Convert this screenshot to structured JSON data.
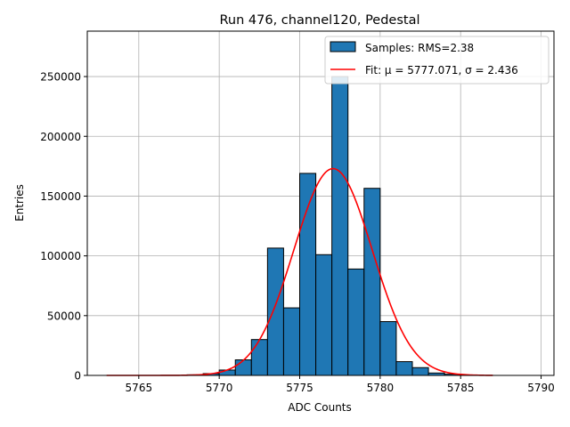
{
  "chart_data": {
    "type": "bar",
    "title": "Run 476, channel120, Pedestal",
    "xlabel": "ADC Counts",
    "ylabel": "Entries",
    "xlim": [
      5761.8,
      5790.8
    ],
    "ylim": [
      0,
      288000
    ],
    "xticks": [
      5765,
      5770,
      5775,
      5780,
      5785,
      5790
    ],
    "xtick_labels": [
      "5765",
      "5770",
      "5775",
      "5780",
      "5785",
      "5790"
    ],
    "yticks": [
      0,
      50000,
      100000,
      150000,
      200000,
      250000
    ],
    "ytick_labels": [
      "0",
      "50000",
      "100000",
      "150000",
      "200000",
      "250000"
    ],
    "grid": true,
    "legend_position": "top-right",
    "bin_width": 1,
    "bins": [
      {
        "left": 5768,
        "value": 500
      },
      {
        "left": 5769,
        "value": 1500
      },
      {
        "left": 5770,
        "value": 4500
      },
      {
        "left": 5771,
        "value": 13000
      },
      {
        "left": 5772,
        "value": 30000
      },
      {
        "left": 5773,
        "value": 106500
      },
      {
        "left": 5774,
        "value": 56500
      },
      {
        "left": 5775,
        "value": 169000
      },
      {
        "left": 5776,
        "value": 101000
      },
      {
        "left": 5777,
        "value": 250000
      },
      {
        "left": 5778,
        "value": 89000
      },
      {
        "left": 5779,
        "value": 156500
      },
      {
        "left": 5780,
        "value": 45000
      },
      {
        "left": 5781,
        "value": 11500
      },
      {
        "left": 5782,
        "value": 6500
      },
      {
        "left": 5783,
        "value": 2000
      },
      {
        "left": 5784,
        "value": 1000
      }
    ],
    "fit": {
      "mu": 5777.071,
      "sigma": 2.436,
      "amplitude": 173000,
      "x_range": [
        5763,
        5787
      ]
    },
    "series": [
      {
        "name": "Samples",
        "label": "Samples: RMS=2.38",
        "type": "histogram",
        "color": "#1f77b4",
        "edgecolor": "#000000"
      },
      {
        "name": "Fit",
        "label": "Fit: μ = 5777.071, σ = 2.436",
        "type": "line",
        "color": "#ff0000"
      }
    ]
  }
}
